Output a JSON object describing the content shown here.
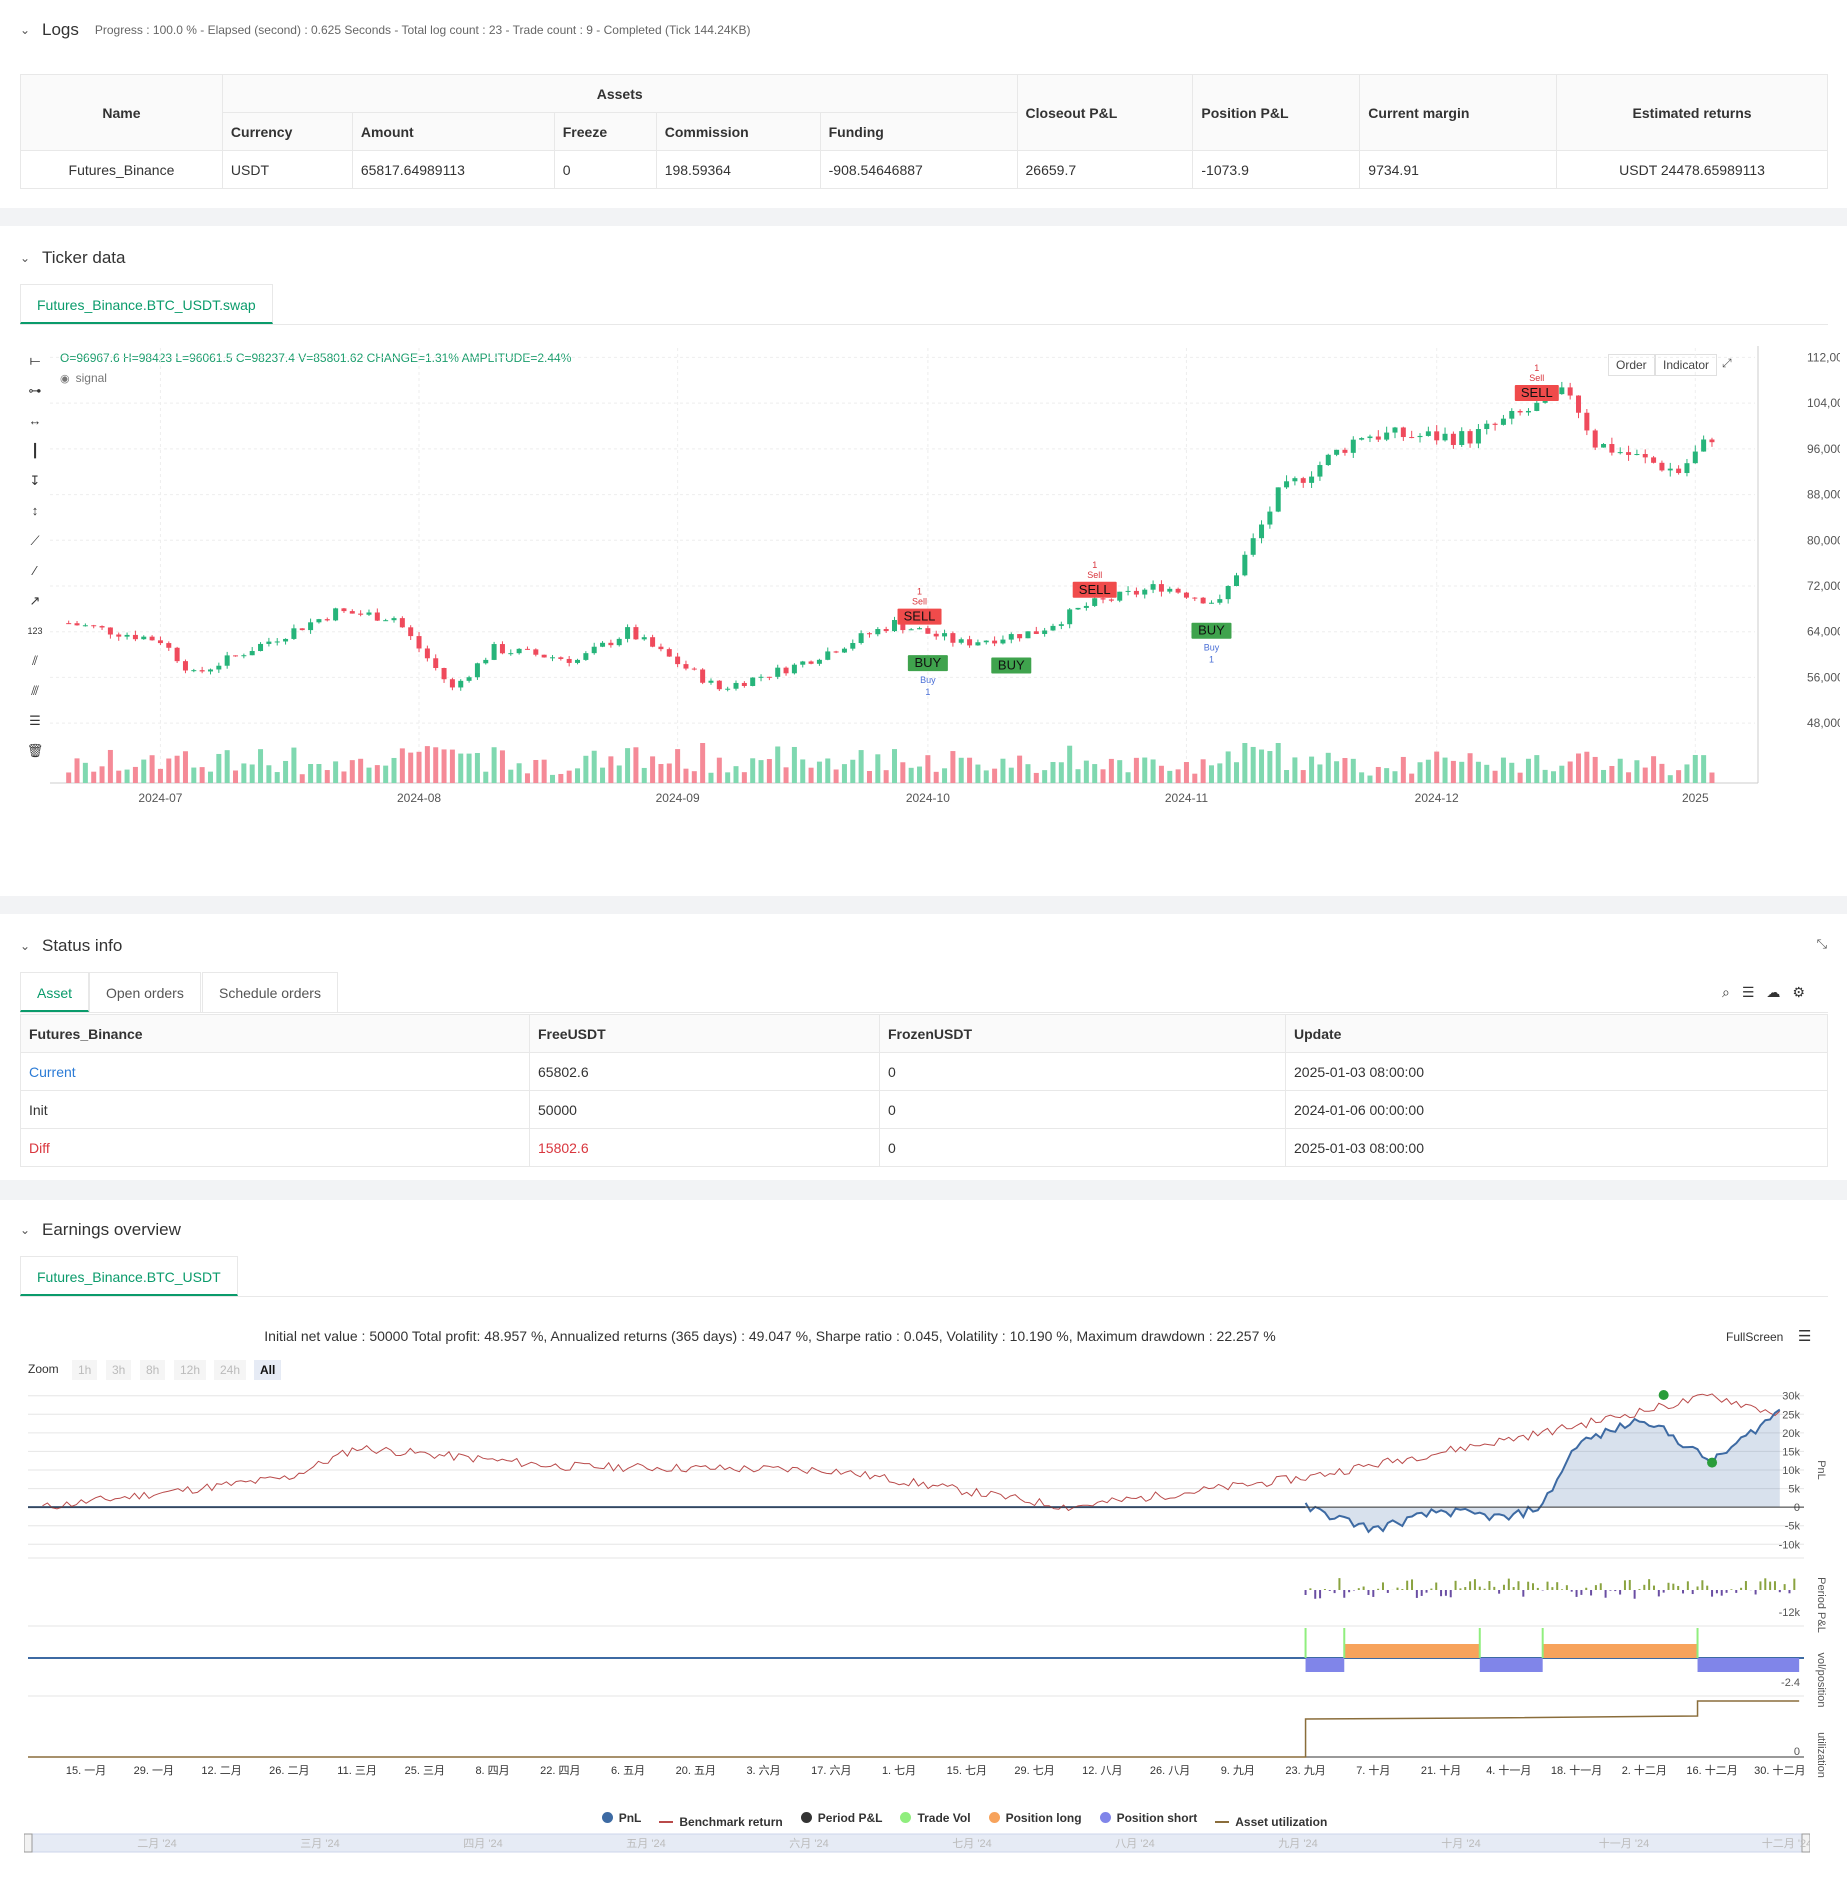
{
  "logs": {
    "title": "Logs",
    "summary": "Progress : 100.0 % - Elapsed (second) : 0.625  Seconds - Total log count : 23 - Trade count : 9 - Completed (Tick 144.24KB)",
    "table": {
      "name_header": "Name",
      "assets_header": "Assets",
      "sub_headers": [
        "Currency",
        "Amount",
        "Freeze",
        "Commission",
        "Funding"
      ],
      "right_headers": [
        "Closeout P&L",
        "Position P&L",
        "Current margin",
        "Estimated returns"
      ],
      "row": [
        "Futures_Binance",
        "USDT",
        "65817.64989113",
        "0",
        "198.59364",
        "-908.54646887",
        "26659.7",
        "-1073.9",
        "9734.91",
        "USDT 24478.65989113"
      ]
    }
  },
  "ticker": {
    "title": "Ticker data",
    "tab": "Futures_Binance.BTC_USDT.swap",
    "ohlc": "O=96967.6 H=98423 L=96061.5 C=98237.4 V=85801.62 CHANGE=1.31% AMPLITUDE=2.44%",
    "signal_label": "signal",
    "buttons": [
      "Order",
      "Indicator"
    ],
    "y_ticks": [
      "112,000.00",
      "104,000.00",
      "96,000.00",
      "88,000.00",
      "80,000.00",
      "72,000.00",
      "64,000.00",
      "56,000.00",
      "48,000.00"
    ],
    "x_ticks": [
      "2024-07",
      "2024-08",
      "2024-09",
      "2024-10",
      "2024-11",
      "2024-12",
      "2025"
    ],
    "signals": [
      {
        "type": "SELL",
        "small": "Sell",
        "count": "1"
      },
      {
        "type": "BUY",
        "small": "Buy",
        "count": "1"
      },
      {
        "type": "BUY",
        "small": "",
        "count": ""
      },
      {
        "type": "SELL",
        "small": "Sell",
        "count": "1"
      },
      {
        "type": "BUY",
        "small": "Buy",
        "count": "1"
      },
      {
        "type": "SELL",
        "small": "Sell",
        "count": "1"
      }
    ]
  },
  "status": {
    "title": "Status info",
    "tabs": [
      "Asset",
      "Open orders",
      "Schedule orders"
    ],
    "headers": [
      "Futures_Binance",
      "FreeUSDT",
      "FrozenUSDT",
      "Update"
    ],
    "rows": [
      [
        "Current",
        "65802.6",
        "0",
        "2025-01-03 08:00:00"
      ],
      [
        "Init",
        "50000",
        "0",
        "2024-01-06 00:00:00"
      ],
      [
        "Diff",
        "15802.6",
        "0",
        "2025-01-03 08:00:00"
      ]
    ]
  },
  "earnings": {
    "title": "Earnings overview",
    "tab": "Futures_Binance.BTC_USDT",
    "summary": "Initial net value : 50000 Total profit: 48.957 %, Annualized returns (365 days) : 49.047 %, Sharpe ratio : 0.045, Volatility : 10.190 %, Maximum drawdown : 22.257 %",
    "fullscreen": "FullScreen",
    "zoom_label": "Zoom",
    "zoom_buttons": [
      "1h",
      "3h",
      "8h",
      "12h",
      "24h",
      "All"
    ],
    "pnl_ticks": [
      "30k",
      "25k",
      "20k",
      "15k",
      "10k",
      "5k",
      "0",
      "-5k",
      "-10k"
    ],
    "axis_titles": [
      "PnL",
      "Period P&L",
      "vol/position",
      "utilization"
    ],
    "period_tick": "-12k",
    "vol_tick": "-2.4",
    "util_tick": "0",
    "x_ticks": [
      "15. 一月",
      "29. 一月",
      "12. 二月",
      "26. 二月",
      "11. 三月",
      "25. 三月",
      "8. 四月",
      "22. 四月",
      "6. 五月",
      "20. 五月",
      "3. 六月",
      "17. 六月",
      "1. 七月",
      "15. 七月",
      "29. 七月",
      "12. 八月",
      "26. 八月",
      "9. 九月",
      "23. 九月",
      "7. 十月",
      "21. 十月",
      "4. 十一月",
      "18. 十一月",
      "2. 十二月",
      "16. 十二月",
      "30. 十二月"
    ],
    "legend": [
      {
        "label": "PnL",
        "color": "#3d6aa3",
        "kind": "dot"
      },
      {
        "label": "Benchmark return",
        "color": "#b94a4a",
        "kind": "line"
      },
      {
        "label": "Period P&L",
        "color": "#333333",
        "kind": "dot"
      },
      {
        "label": "Trade Vol",
        "color": "#90ee7e",
        "kind": "dot"
      },
      {
        "label": "Position long",
        "color": "#f7a35c",
        "kind": "dot"
      },
      {
        "label": "Position short",
        "color": "#8085e9",
        "kind": "dot"
      },
      {
        "label": "Asset utilization",
        "color": "#8a6d3b",
        "kind": "line"
      }
    ],
    "navigator_ticks": [
      "二月 '24",
      "三月 '24",
      "四月 '24",
      "五月 '24",
      "六月 '24",
      "七月 '24",
      "八月 '24",
      "九月 '24",
      "十月 '24",
      "十一月 '24",
      "十二月 '24"
    ]
  },
  "chart_data": [
    {
      "type": "candlestick",
      "title": "",
      "y_ticks": [
        112000,
        104000,
        96000,
        88000,
        80000,
        72000,
        64000,
        56000,
        48000
      ],
      "ylim": [
        44000,
        114000
      ],
      "x_ticks": [
        "2024-07",
        "2024-08",
        "2024-09",
        "2024-10",
        "2024-11",
        "2024-12",
        "2025"
      ],
      "close_approx": [
        {
          "x": "2024-06-20",
          "y": 65500
        },
        {
          "x": "2024-07-01",
          "y": 62500
        },
        {
          "x": "2024-07-05",
          "y": 56500
        },
        {
          "x": "2024-07-15",
          "y": 63000
        },
        {
          "x": "2024-07-22",
          "y": 67500
        },
        {
          "x": "2024-07-29",
          "y": 66500
        },
        {
          "x": "2024-08-05",
          "y": 54000
        },
        {
          "x": "2024-08-10",
          "y": 61000
        },
        {
          "x": "2024-08-20",
          "y": 59000
        },
        {
          "x": "2024-08-26",
          "y": 64000
        },
        {
          "x": "2024-09-06",
          "y": 54000
        },
        {
          "x": "2024-09-15",
          "y": 58000
        },
        {
          "x": "2024-09-27",
          "y": 65500
        },
        {
          "x": "2024-10-05",
          "y": 62000
        },
        {
          "x": "2024-10-14",
          "y": 64000
        },
        {
          "x": "2024-10-20",
          "y": 68500
        },
        {
          "x": "2024-10-29",
          "y": 72000
        },
        {
          "x": "2024-11-05",
          "y": 69000
        },
        {
          "x": "2024-11-12",
          "y": 88000
        },
        {
          "x": "2024-11-22",
          "y": 98500
        },
        {
          "x": "2024-12-05",
          "y": 98000
        },
        {
          "x": "2024-12-17",
          "y": 106000
        },
        {
          "x": "2024-12-20",
          "y": 97000
        },
        {
          "x": "2024-12-30",
          "y": 92000
        },
        {
          "x": "2025-01-03",
          "y": 98237.4
        }
      ],
      "signals": [
        {
          "x": "2024-09-30",
          "type": "SELL"
        },
        {
          "x": "2024-10-01",
          "type": "BUY"
        },
        {
          "x": "2024-10-11",
          "type": "BUY"
        },
        {
          "x": "2024-10-21",
          "type": "SELL"
        },
        {
          "x": "2024-11-04",
          "type": "BUY"
        },
        {
          "x": "2024-12-13",
          "type": "SELL"
        }
      ]
    },
    {
      "type": "line",
      "title": "",
      "y_ticks": [
        30000,
        25000,
        20000,
        15000,
        10000,
        5000,
        0,
        -5000,
        -10000
      ],
      "ylim": [
        -11000,
        31000
      ],
      "series": [
        {
          "name": "PnL",
          "x": [
            "2024-09-23",
            "2024-10-07",
            "2024-10-21",
            "2024-11-04",
            "2024-11-11",
            "2024-11-18",
            "2024-12-02",
            "2024-12-16",
            "2024-12-30"
          ],
          "values": [
            0,
            -6000,
            -1000,
            -3000,
            500,
            17000,
            24000,
            12000,
            26000
          ]
        },
        {
          "name": "Benchmark return",
          "x": [
            "2024-01-06",
            "2024-02-26",
            "2024-03-11",
            "2024-04-22",
            "2024-06-17",
            "2024-08-05",
            "2024-09-23",
            "2024-11-11",
            "2024-12-16",
            "2024-12-30"
          ],
          "values": [
            0,
            8000,
            16000,
            11000,
            10000,
            0,
            8000,
            20000,
            30000,
            25000
          ]
        }
      ]
    }
  ]
}
